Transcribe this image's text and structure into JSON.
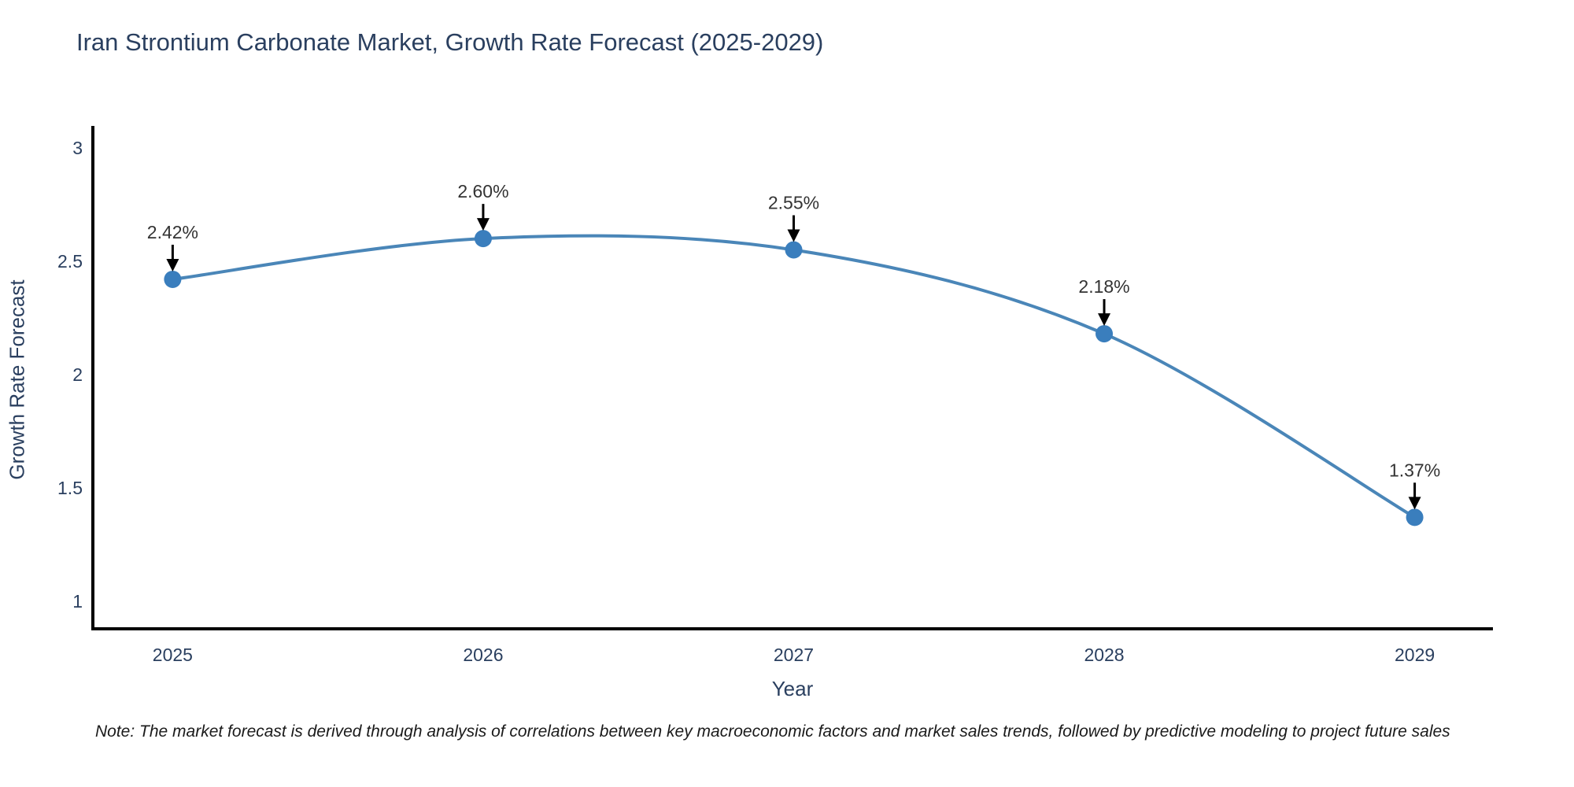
{
  "header": {
    "title": "Iran Strontium Carbonate Market, Growth Rate Forecast (2025-2029)"
  },
  "footnote": "Note: The market forecast is derived through analysis of correlations between key macroeconomic factors and market sales trends, followed by predictive modeling to project future sales",
  "chart_data": {
    "type": "line",
    "title": "Iran Strontium Carbonate Market, Growth Rate Forecast (2025-2029)",
    "xlabel": "Year",
    "ylabel": "Growth Rate Forecast",
    "x": [
      2025,
      2026,
      2027,
      2028,
      2029
    ],
    "values": [
      2.42,
      2.6,
      2.55,
      2.18,
      1.37
    ],
    "point_labels": [
      "2.42%",
      "2.60%",
      "2.55%",
      "2.18%",
      "1.37%"
    ],
    "xtick_labels": [
      "2025",
      "2026",
      "2027",
      "2028",
      "2029"
    ],
    "ytick_values": [
      3,
      2.5,
      2,
      1.5,
      1
    ],
    "ytick_labels": [
      "3",
      "2.5",
      "2",
      "1.5",
      "1"
    ],
    "xlim": [
      2024.743,
      2029.252
    ],
    "ylim": [
      0.878,
      3.097
    ],
    "grid": false,
    "legend_position": "none",
    "line_shape": "spline",
    "colors": {
      "line": "#4a86b8",
      "marker": "#3a7ebd",
      "axis": "#000000",
      "tick_text": "#2a3f5f",
      "annotation_text": "#333333",
      "annotation_arrow": "#000000",
      "background": "#ffffff"
    }
  }
}
